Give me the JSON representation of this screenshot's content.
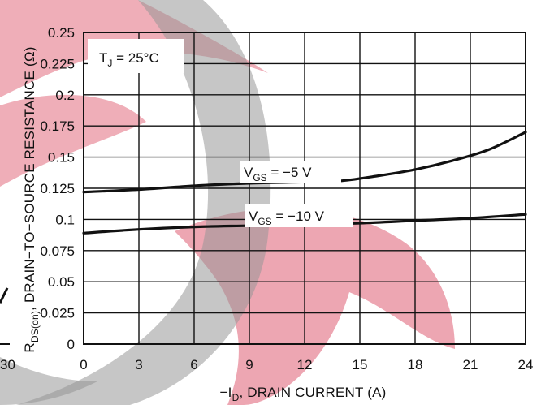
{
  "chart_data": {
    "type": "line",
    "xlabel": {
      "prefix": "−I",
      "sub": "D",
      "rest": ", DRAIN CURRENT (A)"
    },
    "ylabel": {
      "prefix": "R",
      "sub": "DS(on)",
      "rest": ", DRAIN−TO−SOURCE RESISTANCE (Ω)"
    },
    "xlim": [
      0,
      24
    ],
    "ylim": [
      0,
      0.25
    ],
    "x_ticks": [
      "0",
      "3",
      "6",
      "9",
      "12",
      "15",
      "18",
      "21",
      "24"
    ],
    "x_tick_values": [
      0,
      3,
      6,
      9,
      12,
      15,
      18,
      21,
      24
    ],
    "y_ticks": [
      "0",
      "0.025",
      "0.05",
      "0.075",
      "0.1",
      "0.125",
      "0.15",
      "0.175",
      "0.2",
      "0.225",
      "0.25"
    ],
    "y_tick_values": [
      0,
      0.025,
      0.05,
      0.075,
      0.1,
      0.125,
      0.15,
      0.175,
      0.2,
      0.225,
      0.25
    ],
    "grid": true,
    "condition": {
      "prefix": "T",
      "sub": "J",
      "rest": " = 25°C"
    },
    "series": [
      {
        "label": {
          "prefix": "V",
          "sub": "GS",
          "rest": " = −5 V"
        },
        "x": [
          0,
          3,
          6,
          9,
          12,
          14,
          16,
          18,
          20,
          22,
          24
        ],
        "y": [
          0.122,
          0.124,
          0.127,
          0.129,
          0.13,
          0.131,
          0.135,
          0.14,
          0.147,
          0.156,
          0.17
        ]
      },
      {
        "label": {
          "prefix": "V",
          "sub": "GS",
          "rest": " = −10 V"
        },
        "x": [
          0,
          3,
          6,
          9,
          12,
          15,
          18,
          21,
          24
        ],
        "y": [
          0.089,
          0.092,
          0.094,
          0.095,
          0.096,
          0.097,
          0.099,
          0.101,
          0.104
        ]
      }
    ],
    "left_fragment": {
      "tick": "30",
      "x": [
        -5,
        -2
      ],
      "y": [
        0.033,
        0.045
      ]
    }
  }
}
